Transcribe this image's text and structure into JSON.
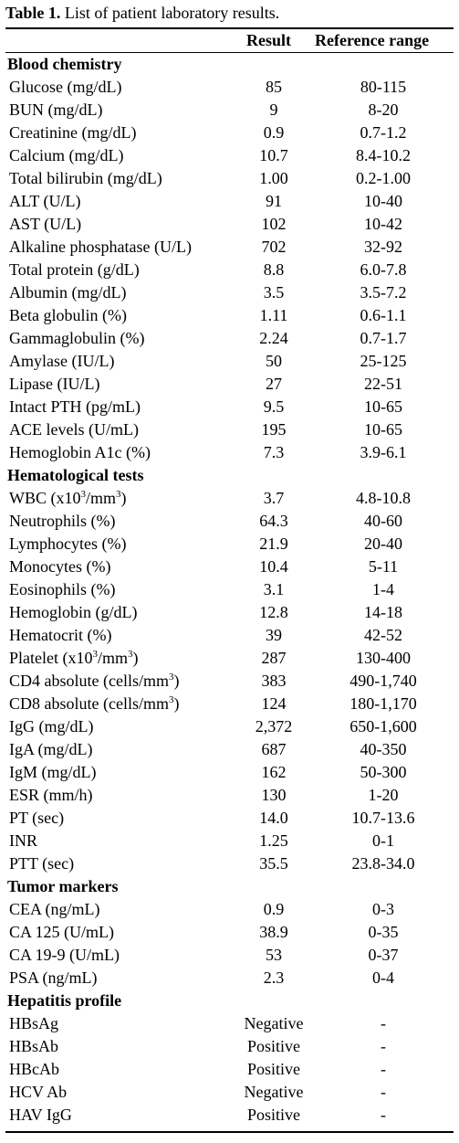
{
  "caption": {
    "label": "Table 1.",
    "text": " List of patient laboratory results."
  },
  "header": {
    "result": "Result",
    "reference": "Reference range"
  },
  "rows": [
    {
      "section": "Blood chemistry"
    },
    {
      "test": "Glucose (mg/dL)",
      "result": "85",
      "ref": "80-115"
    },
    {
      "test": "BUN (mg/dL)",
      "result": "9",
      "ref": "8-20"
    },
    {
      "test": "Creatinine (mg/dL)",
      "result": "0.9",
      "ref": "0.7-1.2"
    },
    {
      "test": "Calcium (mg/dL)",
      "result": "10.7",
      "ref": "8.4-10.2"
    },
    {
      "test": "Total bilirubin (mg/dL)",
      "result": "1.00",
      "ref": "0.2-1.00"
    },
    {
      "test": "ALT (U/L)",
      "result": "91",
      "ref": "10-40"
    },
    {
      "test": "AST (U/L)",
      "result": "102",
      "ref": "10-42"
    },
    {
      "test": "Alkaline phosphatase (U/L)",
      "result": "702",
      "ref": "32-92"
    },
    {
      "test": "Total protein (g/dL)",
      "result": "8.8",
      "ref": "6.0-7.8"
    },
    {
      "test": "Albumin (mg/dL)",
      "result": "3.5",
      "ref": "3.5-7.2"
    },
    {
      "test": "Beta globulin (%)",
      "result": "1.11",
      "ref": "0.6-1.1"
    },
    {
      "test": "Gammaglobulin (%)",
      "result": "2.24",
      "ref": "0.7-1.7"
    },
    {
      "test": "Amylase (IU/L)",
      "result": "50",
      "ref": "25-125"
    },
    {
      "test": "Lipase (IU/L)",
      "result": "27",
      "ref": "22-51"
    },
    {
      "test": "Intact PTH (pg/mL)",
      "result": "9.5",
      "ref": "10-65"
    },
    {
      "test": "ACE levels (U/mL)",
      "result": "195",
      "ref": "10-65"
    },
    {
      "test": "Hemoglobin A1c (%)",
      "result": "7.3",
      "ref": "3.9-6.1"
    },
    {
      "section": "Hematological tests"
    },
    {
      "test_pre": "WBC (x10",
      "sup1": "3",
      "test_mid": "/mm",
      "sup2": "3",
      "test_post": ")",
      "result": "3.7",
      "ref": "4.8-10.8"
    },
    {
      "test": "Neutrophils (%)",
      "result": "64.3",
      "ref": "40-60"
    },
    {
      "test": "Lymphocytes (%)",
      "result": "21.9",
      "ref": "20-40"
    },
    {
      "test": "Monocytes (%)",
      "result": "10.4",
      "ref": "5-11"
    },
    {
      "test": "Eosinophils (%)",
      "result": "3.1",
      "ref": "1-4"
    },
    {
      "test": "Hemoglobin (g/dL)",
      "result": "12.8",
      "ref": "14-18"
    },
    {
      "test": "Hematocrit (%)",
      "result": "39",
      "ref": "42-52"
    },
    {
      "test_pre": "Platelet (x10",
      "sup1": "3",
      "test_mid": "/mm",
      "sup2": "3",
      "test_post": ")",
      "result": "287",
      "ref": "130-400"
    },
    {
      "test_pre": "CD4 absolute (cells/mm",
      "sup1": "3",
      "test_mid": ")",
      "result": "383",
      "ref": "490-1,740"
    },
    {
      "test_pre": "CD8 absolute (cells/mm",
      "sup1": "3",
      "test_mid": ")",
      "result": "124",
      "ref": "180-1,170"
    },
    {
      "test": "IgG (mg/dL)",
      "result": "2,372",
      "ref": "650-1,600"
    },
    {
      "test": "IgA (mg/dL)",
      "result": "687",
      "ref": "40-350"
    },
    {
      "test": "IgM (mg/dL)",
      "result": "162",
      "ref": "50-300"
    },
    {
      "test": "ESR (mm/h)",
      "result": "130",
      "ref": "1-20"
    },
    {
      "test": "PT (sec)",
      "result": "14.0",
      "ref": "10.7-13.6"
    },
    {
      "test": "INR",
      "result": "1.25",
      "ref": "0-1"
    },
    {
      "test": "PTT (sec)",
      "result": "35.5",
      "ref": "23.8-34.0"
    },
    {
      "section": "Tumor markers"
    },
    {
      "test": "CEA (ng/mL)",
      "result": "0.9",
      "ref": "0-3"
    },
    {
      "test": "CA 125 (U/mL)",
      "result": "38.9",
      "ref": "0-35"
    },
    {
      "test": "CA 19-9 (U/mL)",
      "result": "53",
      "ref": "0-37"
    },
    {
      "test": "PSA (ng/mL)",
      "result": "2.3",
      "ref": "0-4"
    },
    {
      "section": "Hepatitis profile"
    },
    {
      "test": "HBsAg",
      "result": "Negative",
      "ref": "-"
    },
    {
      "test": "HBsAb",
      "result": "Positive",
      "ref": "-"
    },
    {
      "test": "HBcAb",
      "result": "Positive",
      "ref": "-"
    },
    {
      "test": "HCV Ab",
      "result": "Negative",
      "ref": "-"
    },
    {
      "test": "HAV IgG",
      "result": "Positive",
      "ref": "-"
    }
  ]
}
